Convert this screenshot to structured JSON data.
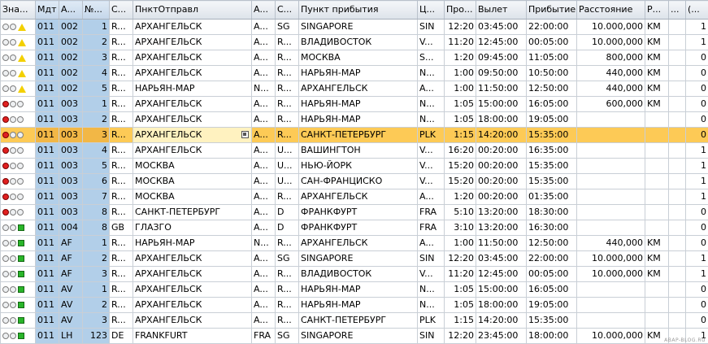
{
  "headers": {
    "status": "Зна...",
    "mandt": "Мдт",
    "carrid": "А...",
    "connid": "№...",
    "countryfr": "С...",
    "cityfrom": "ПнктОтправл",
    "airpfrom": "А...",
    "countryto": "С...",
    "cityto": "Пункт прибытия",
    "airpto": "Ц...",
    "fltime": "Про...",
    "deptime": "Вылет",
    "arrtime": "Прибытие",
    "distance": "Расстояние",
    "distid": "Р...",
    "fltype": "...",
    "period": "(..."
  },
  "rows": [
    {
      "light": "yellow",
      "mandt": "011",
      "carrid": "002",
      "connid": "1",
      "countryfr": "R...",
      "cityfrom": "АРХАНГЕЛЬСК",
      "airpfrom": "A...",
      "countryto": "SG",
      "cityto": "SINGAPORE",
      "airpto": "SIN",
      "fltime": "12:20",
      "deptime": "03:45:00",
      "arrtime": "22:00:00",
      "distance": "10.000,000",
      "distid": "KM",
      "fltype": "",
      "period": "1"
    },
    {
      "light": "yellow",
      "mandt": "011",
      "carrid": "002",
      "connid": "2",
      "countryfr": "R...",
      "cityfrom": "АРХАНГЕЛЬСК",
      "airpfrom": "A...",
      "countryto": "R...",
      "cityto": "ВЛАДИВОСТОК",
      "airpto": "V...",
      "fltime": "11:20",
      "deptime": "12:45:00",
      "arrtime": "00:05:00",
      "distance": "10.000,000",
      "distid": "KM",
      "fltype": "",
      "period": "1"
    },
    {
      "light": "yellow",
      "mandt": "011",
      "carrid": "002",
      "connid": "3",
      "countryfr": "R...",
      "cityfrom": "АРХАНГЕЛЬСК",
      "airpfrom": "A...",
      "countryto": "R...",
      "cityto": "МОСКВА",
      "airpto": "S...",
      "fltime": "1:20",
      "deptime": "09:45:00",
      "arrtime": "11:05:00",
      "distance": "800,000",
      "distid": "KM",
      "fltype": "",
      "period": "0"
    },
    {
      "light": "yellow",
      "mandt": "011",
      "carrid": "002",
      "connid": "4",
      "countryfr": "R...",
      "cityfrom": "АРХАНГЕЛЬСК",
      "airpfrom": "A...",
      "countryto": "R...",
      "cityto": "НАРЬЯН-МАР",
      "airpto": "N...",
      "fltime": "1:00",
      "deptime": "09:50:00",
      "arrtime": "10:50:00",
      "distance": "440,000",
      "distid": "KM",
      "fltype": "",
      "period": "0"
    },
    {
      "light": "yellow",
      "mandt": "011",
      "carrid": "002",
      "connid": "5",
      "countryfr": "R...",
      "cityfrom": "НАРЬЯН-МАР",
      "airpfrom": "N...",
      "countryto": "R...",
      "cityto": "АРХАНГЕЛЬСК",
      "airpto": "A...",
      "fltime": "1:00",
      "deptime": "11:50:00",
      "arrtime": "12:50:00",
      "distance": "440,000",
      "distid": "KM",
      "fltype": "",
      "period": "0"
    },
    {
      "light": "red",
      "mandt": "011",
      "carrid": "003",
      "connid": "1",
      "countryfr": "R...",
      "cityfrom": "АРХАНГЕЛЬСК",
      "airpfrom": "A...",
      "countryto": "R...",
      "cityto": "НАРЬЯН-МАР",
      "airpto": "N...",
      "fltime": "1:05",
      "deptime": "15:00:00",
      "arrtime": "16:05:00",
      "distance": "600,000",
      "distid": "KM",
      "fltype": "",
      "period": "0"
    },
    {
      "light": "red",
      "mandt": "011",
      "carrid": "003",
      "connid": "2",
      "countryfr": "R...",
      "cityfrom": "АРХАНГЕЛЬСК",
      "airpfrom": "A...",
      "countryto": "R...",
      "cityto": "НАРЬЯН-МАР",
      "airpto": "N...",
      "fltime": "1:05",
      "deptime": "18:00:00",
      "arrtime": "19:05:00",
      "distance": "",
      "distid": "",
      "fltype": "",
      "period": "0"
    },
    {
      "light": "red",
      "mandt": "011",
      "carrid": "003",
      "connid": "3",
      "countryfr": "R...",
      "cityfrom": "АРХАНГЕЛЬСК",
      "airpfrom": "A...",
      "countryto": "R...",
      "cityto": "САНКТ-ПЕТЕРБУРГ",
      "airpto": "PLK",
      "fltime": "1:15",
      "deptime": "14:20:00",
      "arrtime": "15:35:00",
      "distance": "",
      "distid": "",
      "fltype": "",
      "period": "0",
      "selected": true
    },
    {
      "light": "red",
      "mandt": "011",
      "carrid": "003",
      "connid": "4",
      "countryfr": "R...",
      "cityfrom": "АРХАНГЕЛЬСК",
      "airpfrom": "A...",
      "countryto": "U...",
      "cityto": "ВАШИНГТОН",
      "airpto": "V...",
      "fltime": "16:20",
      "deptime": "00:20:00",
      "arrtime": "16:35:00",
      "distance": "",
      "distid": "",
      "fltype": "",
      "period": "1"
    },
    {
      "light": "red",
      "mandt": "011",
      "carrid": "003",
      "connid": "5",
      "countryfr": "R...",
      "cityfrom": "МОСКВА",
      "airpfrom": "A...",
      "countryto": "U...",
      "cityto": "НЬЮ-ЙОРК",
      "airpto": "V...",
      "fltime": "15:20",
      "deptime": "00:20:00",
      "arrtime": "15:35:00",
      "distance": "",
      "distid": "",
      "fltype": "",
      "period": "1"
    },
    {
      "light": "red",
      "mandt": "011",
      "carrid": "003",
      "connid": "6",
      "countryfr": "R...",
      "cityfrom": "МОСКВА",
      "airpfrom": "A...",
      "countryto": "U...",
      "cityto": "САН-ФРАНЦИСКО",
      "airpto": "V...",
      "fltime": "15:20",
      "deptime": "00:20:00",
      "arrtime": "15:35:00",
      "distance": "",
      "distid": "",
      "fltype": "",
      "period": "1"
    },
    {
      "light": "red",
      "mandt": "011",
      "carrid": "003",
      "connid": "7",
      "countryfr": "R...",
      "cityfrom": "МОСКВА",
      "airpfrom": "A...",
      "countryto": "R...",
      "cityto": "АРХАНГЕЛЬСК",
      "airpto": "A...",
      "fltime": "1:20",
      "deptime": "00:20:00",
      "arrtime": "01:35:00",
      "distance": "",
      "distid": "",
      "fltype": "",
      "period": "1"
    },
    {
      "light": "red",
      "mandt": "011",
      "carrid": "003",
      "connid": "8",
      "countryfr": "R...",
      "cityfrom": "САНКТ-ПЕТЕРБУРГ",
      "airpfrom": "A...",
      "countryto": "D",
      "cityto": "ФРАНКФУРТ",
      "airpto": "FRA",
      "fltime": "5:10",
      "deptime": "13:20:00",
      "arrtime": "18:30:00",
      "distance": "",
      "distid": "",
      "fltype": "",
      "period": "0"
    },
    {
      "light": "green",
      "mandt": "011",
      "carrid": "004",
      "connid": "8",
      "countryfr": "GB",
      "cityfrom": "ГЛАЗГО",
      "airpfrom": "A...",
      "countryto": "D",
      "cityto": "ФРАНКФУРТ",
      "airpto": "FRA",
      "fltime": "3:10",
      "deptime": "13:20:00",
      "arrtime": "16:30:00",
      "distance": "",
      "distid": "",
      "fltype": "",
      "period": "0"
    },
    {
      "light": "green",
      "mandt": "011",
      "carrid": "AF",
      "connid": "1",
      "countryfr": "R...",
      "cityfrom": "НАРЬЯН-МАР",
      "airpfrom": "N...",
      "countryto": "R...",
      "cityto": "АРХАНГЕЛЬСК",
      "airpto": "A...",
      "fltime": "1:00",
      "deptime": "11:50:00",
      "arrtime": "12:50:00",
      "distance": "440,000",
      "distid": "KM",
      "fltype": "",
      "period": "0"
    },
    {
      "light": "green",
      "mandt": "011",
      "carrid": "AF",
      "connid": "2",
      "countryfr": "R...",
      "cityfrom": "АРХАНГЕЛЬСК",
      "airpfrom": "A...",
      "countryto": "SG",
      "cityto": "SINGAPORE",
      "airpto": "SIN",
      "fltime": "12:20",
      "deptime": "03:45:00",
      "arrtime": "22:00:00",
      "distance": "10.000,000",
      "distid": "KM",
      "fltype": "",
      "period": "1"
    },
    {
      "light": "green",
      "mandt": "011",
      "carrid": "AF",
      "connid": "3",
      "countryfr": "R...",
      "cityfrom": "АРХАНГЕЛЬСК",
      "airpfrom": "A...",
      "countryto": "R...",
      "cityto": "ВЛАДИВОСТОК",
      "airpto": "V...",
      "fltime": "11:20",
      "deptime": "12:45:00",
      "arrtime": "00:05:00",
      "distance": "10.000,000",
      "distid": "KM",
      "fltype": "",
      "period": "1"
    },
    {
      "light": "green",
      "mandt": "011",
      "carrid": "AV",
      "connid": "1",
      "countryfr": "R...",
      "cityfrom": "АРХАНГЕЛЬСК",
      "airpfrom": "A...",
      "countryto": "R...",
      "cityto": "НАРЬЯН-МАР",
      "airpto": "N...",
      "fltime": "1:05",
      "deptime": "15:00:00",
      "arrtime": "16:05:00",
      "distance": "",
      "distid": "",
      "fltype": "",
      "period": "0"
    },
    {
      "light": "green",
      "mandt": "011",
      "carrid": "AV",
      "connid": "2",
      "countryfr": "R...",
      "cityfrom": "АРХАНГЕЛЬСК",
      "airpfrom": "A...",
      "countryto": "R...",
      "cityto": "НАРЬЯН-МАР",
      "airpto": "N...",
      "fltime": "1:05",
      "deptime": "18:00:00",
      "arrtime": "19:05:00",
      "distance": "",
      "distid": "",
      "fltype": "",
      "period": "0"
    },
    {
      "light": "green",
      "mandt": "011",
      "carrid": "AV",
      "connid": "3",
      "countryfr": "R...",
      "cityfrom": "АРХАНГЕЛЬСК",
      "airpfrom": "A...",
      "countryto": "R...",
      "cityto": "САНКТ-ПЕТЕРБУРГ",
      "airpto": "PLK",
      "fltime": "1:15",
      "deptime": "14:20:00",
      "arrtime": "15:35:00",
      "distance": "",
      "distid": "",
      "fltype": "",
      "period": "0"
    },
    {
      "light": "green",
      "mandt": "011",
      "carrid": "LH",
      "connid": "123",
      "countryfr": "DE",
      "cityfrom": "FRANKFURT",
      "airpfrom": "FRA",
      "countryto": "SG",
      "cityto": "SINGAPORE",
      "airpto": "SIN",
      "fltime": "12:20",
      "deptime": "23:45:00",
      "arrtime": "18:00:00",
      "distance": "10.000,000",
      "distid": "KM",
      "fltype": "",
      "period": "1"
    }
  ],
  "watermark": "ABAP-BLOG.RU",
  "colors": {
    "key_column": "#b2cfe9",
    "selected_row": "#fdca56",
    "light_red": "#e02020",
    "light_yellow": "#f3d000",
    "light_green": "#29b529"
  }
}
